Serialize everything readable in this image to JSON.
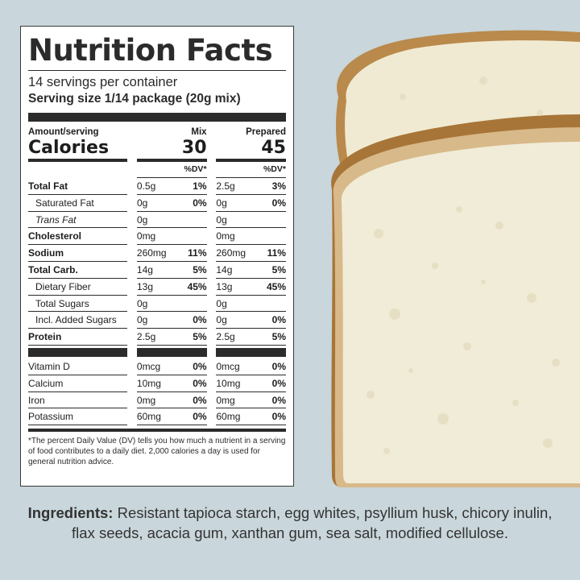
{
  "label": {
    "title": "Nutrition Facts",
    "servings": "14 servings per container",
    "serving_size": "Serving size 1/14 package (20g mix)",
    "amount_per_serving": "Amount/serving",
    "calories_label": "Calories",
    "mix_header": "Mix",
    "prepared_header": "Prepared",
    "mix_calories": "30",
    "prepared_calories": "45",
    "dv_header": "%DV*",
    "nutrients": [
      {
        "name": "Total Fat",
        "mix": "0.5g",
        "mix_dv": "1%",
        "prep": "2.5g",
        "prep_dv": "3%"
      },
      {
        "name": "Saturated Fat",
        "mix": "0g",
        "mix_dv": "0%",
        "prep": "0g",
        "prep_dv": "0%"
      },
      {
        "name": "Trans Fat",
        "mix": "0g",
        "mix_dv": "",
        "prep": "0g",
        "prep_dv": ""
      },
      {
        "name": "Cholesterol",
        "mix": "0mg",
        "mix_dv": "",
        "prep": "0mg",
        "prep_dv": ""
      },
      {
        "name": "Sodium",
        "mix": "260mg",
        "mix_dv": "11%",
        "prep": "260mg",
        "prep_dv": "11%"
      },
      {
        "name": "Total Carb.",
        "mix": "14g",
        "mix_dv": "5%",
        "prep": "14g",
        "prep_dv": "5%"
      },
      {
        "name": "Dietary Fiber",
        "mix": "13g",
        "mix_dv": "45%",
        "prep": "13g",
        "prep_dv": "45%"
      },
      {
        "name": "Total Sugars",
        "mix": "0g",
        "mix_dv": "",
        "prep": "0g",
        "prep_dv": ""
      },
      {
        "name": "Incl. Added Sugars",
        "mix": "0g",
        "mix_dv": "0%",
        "prep": "0g",
        "prep_dv": "0%"
      },
      {
        "name": "Protein",
        "mix": "2.5g",
        "mix_dv": "5%",
        "prep": "2.5g",
        "prep_dv": "5%"
      }
    ],
    "vitamins": [
      {
        "name": "Vitamin D",
        "mix": "0mcg",
        "mix_dv": "0%",
        "prep": "0mcg",
        "prep_dv": "0%"
      },
      {
        "name": "Calcium",
        "mix": "10mg",
        "mix_dv": "0%",
        "prep": "10mg",
        "prep_dv": "0%"
      },
      {
        "name": "Iron",
        "mix": "0mg",
        "mix_dv": "0%",
        "prep": "0mg",
        "prep_dv": "0%"
      },
      {
        "name": "Potassium",
        "mix": "60mg",
        "mix_dv": "0%",
        "prep": "60mg",
        "prep_dv": "0%"
      }
    ],
    "footnote": "*The percent Daily Value (DV) tells you how much a nutrient in a serving of food contributes to a daily diet. 2,000 calories a day is used for general nutrition advice."
  },
  "ingredients": {
    "heading": "Ingredients:",
    "text": "Resistant tapioca starch, egg whites, psyllium husk, chicory inulin, flax seeds, acacia gum, xanthan gum, sea salt, modified cellulose."
  },
  "colors": {
    "background": "#c9d6db",
    "label_ink": "#2b2b2b",
    "crust": "#b98a4c",
    "crumb": "#f1ecd8"
  }
}
